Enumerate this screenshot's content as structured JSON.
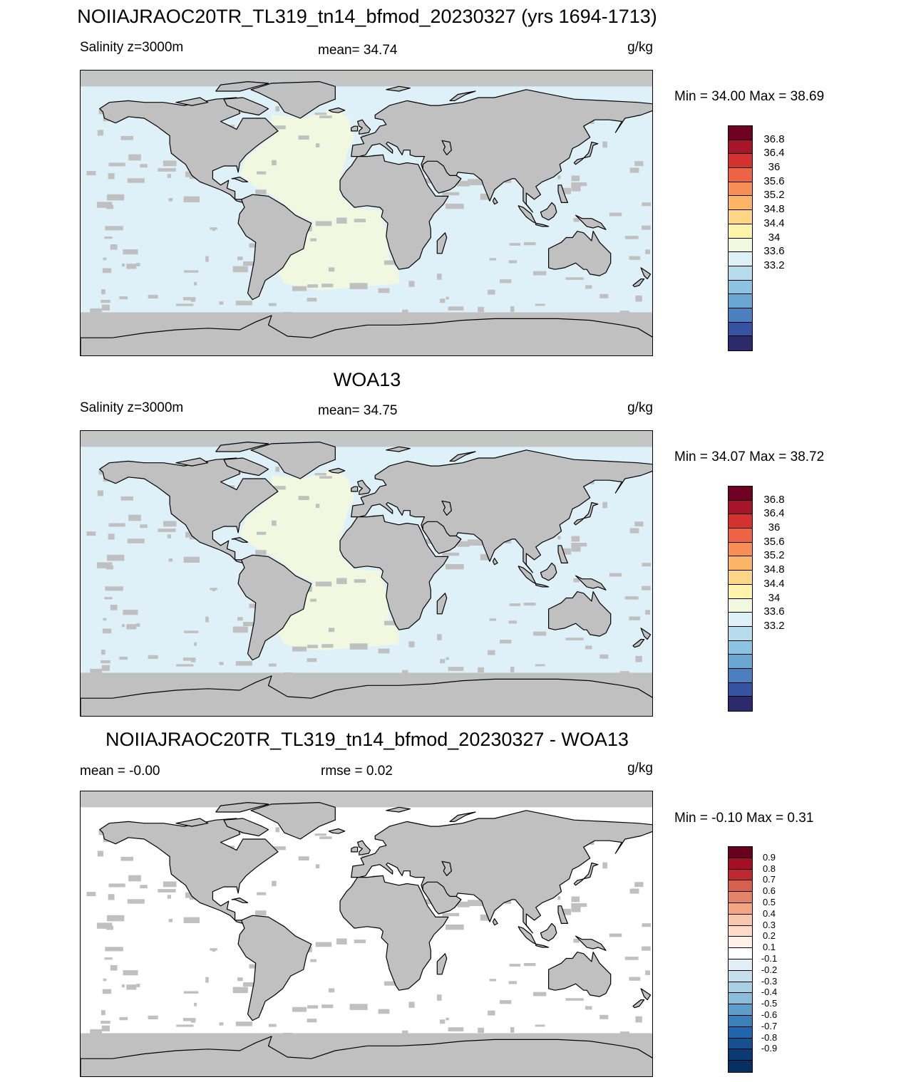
{
  "panels": [
    {
      "title": "NOIIAJRAOC20TR_TL319_tn14_bfmod_20230327 (yrs 1694-1713)",
      "left_label": "Salinity z=3000m",
      "center_label": "mean=  34.74",
      "units": "g/kg",
      "minmax": "Min =  34.00 Max =  38.69",
      "ocean_color": "#dff1f8",
      "atlantic_color": "#f1f8df",
      "colorbar": {
        "colors": [
          "#6e0024",
          "#a6152a",
          "#d4322f",
          "#ee6245",
          "#f78e55",
          "#fcb466",
          "#fdd586",
          "#fff4aa",
          "#f1f8df",
          "#dff1f8",
          "#b6dceb",
          "#8cc3e0",
          "#6aa6d2",
          "#4b7fbd",
          "#3553a2",
          "#2c2a6a"
        ],
        "labels": [
          "36.8",
          "36.4",
          "36",
          "35.6",
          "35.2",
          "34.8",
          "34.4",
          "34",
          "33.6",
          "33.2"
        ]
      }
    },
    {
      "title": "WOA13",
      "left_label": "Salinity z=3000m",
      "center_label": "mean=  34.75",
      "units": "g/kg",
      "minmax": "Min =  34.07 Max =  38.72",
      "ocean_color": "#dff1f8",
      "atlantic_color": "#f1f8df",
      "colorbar": {
        "colors": [
          "#6e0024",
          "#a6152a",
          "#d4322f",
          "#ee6245",
          "#f78e55",
          "#fcb466",
          "#fdd586",
          "#fff4aa",
          "#f1f8df",
          "#dff1f8",
          "#b6dceb",
          "#8cc3e0",
          "#6aa6d2",
          "#4b7fbd",
          "#3553a2",
          "#2c2a6a"
        ],
        "labels": [
          "36.8",
          "36.4",
          "36",
          "35.6",
          "35.2",
          "34.8",
          "34.4",
          "34",
          "33.6",
          "33.2"
        ]
      }
    },
    {
      "title": "NOIIAJRAOC20TR_TL319_tn14_bfmod_20230327 - WOA13",
      "left_label": "mean =  -0.00",
      "center_label": "rmse =   0.02",
      "units": "g/kg",
      "minmax": "Min =  -0.10 Max =   0.31",
      "ocean_color": "#ffffff",
      "atlantic_color": "#ffffff",
      "colorbar": {
        "colors": [
          "#67001f",
          "#a50f26",
          "#c0282f",
          "#d6604d",
          "#e5826a",
          "#f4a582",
          "#f9c6ad",
          "#fddbc7",
          "#fff0e8",
          "#ffffff",
          "#e3eff6",
          "#c6dfec",
          "#a9cfe4",
          "#8bbcd9",
          "#5e9ccb",
          "#3d7fb9",
          "#2166ac",
          "#16508f",
          "#0a3a73",
          "#053061"
        ],
        "labels": [
          "0.9",
          "0.8",
          "0.7",
          "0.6",
          "0.5",
          "0.4",
          "0.3",
          "0.2",
          "0.1",
          "-0.1",
          "-0.2",
          "-0.3",
          "-0.4",
          "-0.5",
          "-0.6",
          "-0.7",
          "-0.8",
          "-0.9"
        ]
      }
    }
  ]
}
